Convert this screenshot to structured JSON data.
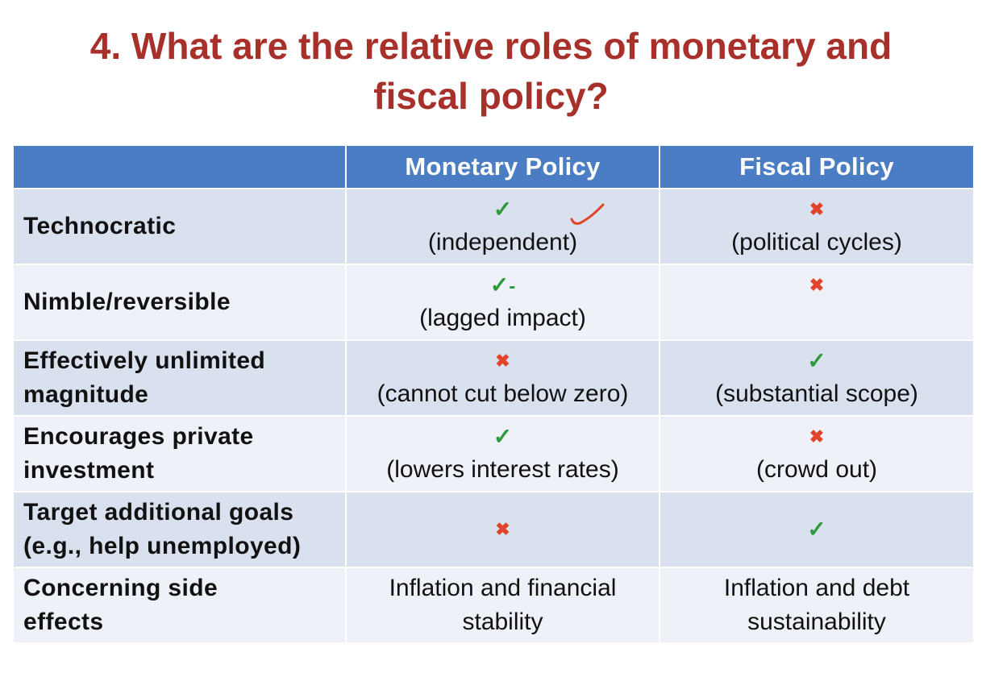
{
  "title": {
    "line1": "4. What are the relative roles of monetary and",
    "line2": "fiscal policy?"
  },
  "table": {
    "headers": [
      "",
      "Monetary Policy",
      "Fiscal Policy"
    ],
    "rows": [
      {
        "label_lines": [
          "Technocratic"
        ],
        "monetary": {
          "mark": "check",
          "mark_glyph": "✓",
          "note": "(independent)"
        },
        "fiscal": {
          "mark": "cross",
          "mark_glyph": "✖",
          "note": "(political cycles)"
        }
      },
      {
        "label_lines": [
          "Nimble/reversible"
        ],
        "monetary": {
          "mark": "check-minus",
          "mark_glyph": "✓",
          "suffix": "-",
          "note": "(lagged impact)"
        },
        "fiscal": {
          "mark": "cross",
          "mark_glyph": "✖",
          "note": ""
        }
      },
      {
        "label_lines": [
          "Effectively unlimited",
          "magnitude"
        ],
        "monetary": {
          "mark": "cross",
          "mark_glyph": "✖",
          "note": "(cannot cut below zero)"
        },
        "fiscal": {
          "mark": "check",
          "mark_glyph": "✓",
          "note": "(substantial scope)"
        }
      },
      {
        "label_lines": [
          "Encourages private",
          "investment"
        ],
        "monetary": {
          "mark": "check",
          "mark_glyph": "✓",
          "note": "(lowers interest rates)"
        },
        "fiscal": {
          "mark": "cross",
          "mark_glyph": "✖",
          "note": "(crowd out)"
        }
      },
      {
        "label_lines": [
          "Target additional goals",
          "(e.g., help unemployed)"
        ],
        "monetary": {
          "mark": "cross",
          "mark_glyph": "✖",
          "note": ""
        },
        "fiscal": {
          "mark": "check",
          "mark_glyph": "✓",
          "note": ""
        }
      },
      {
        "label_lines": [
          "Concerning side",
          "effects"
        ],
        "monetary": {
          "mark": "none",
          "mark_glyph": "",
          "note_lines": [
            "Inflation and financial",
            "stability"
          ]
        },
        "fiscal": {
          "mark": "none",
          "mark_glyph": "",
          "note_lines": [
            "Inflation and debt",
            "sustainability"
          ]
        }
      }
    ]
  },
  "colors": {
    "title": "#a8302a",
    "header_bg": "#4b7dc5",
    "row_dark": "#d9e1ef",
    "row_light": "#eef2f8",
    "check": "#2f9a3c",
    "cross": "#e0452b",
    "annotation": "#e0452b"
  },
  "annotation_icon": "handwritten-check-icon"
}
